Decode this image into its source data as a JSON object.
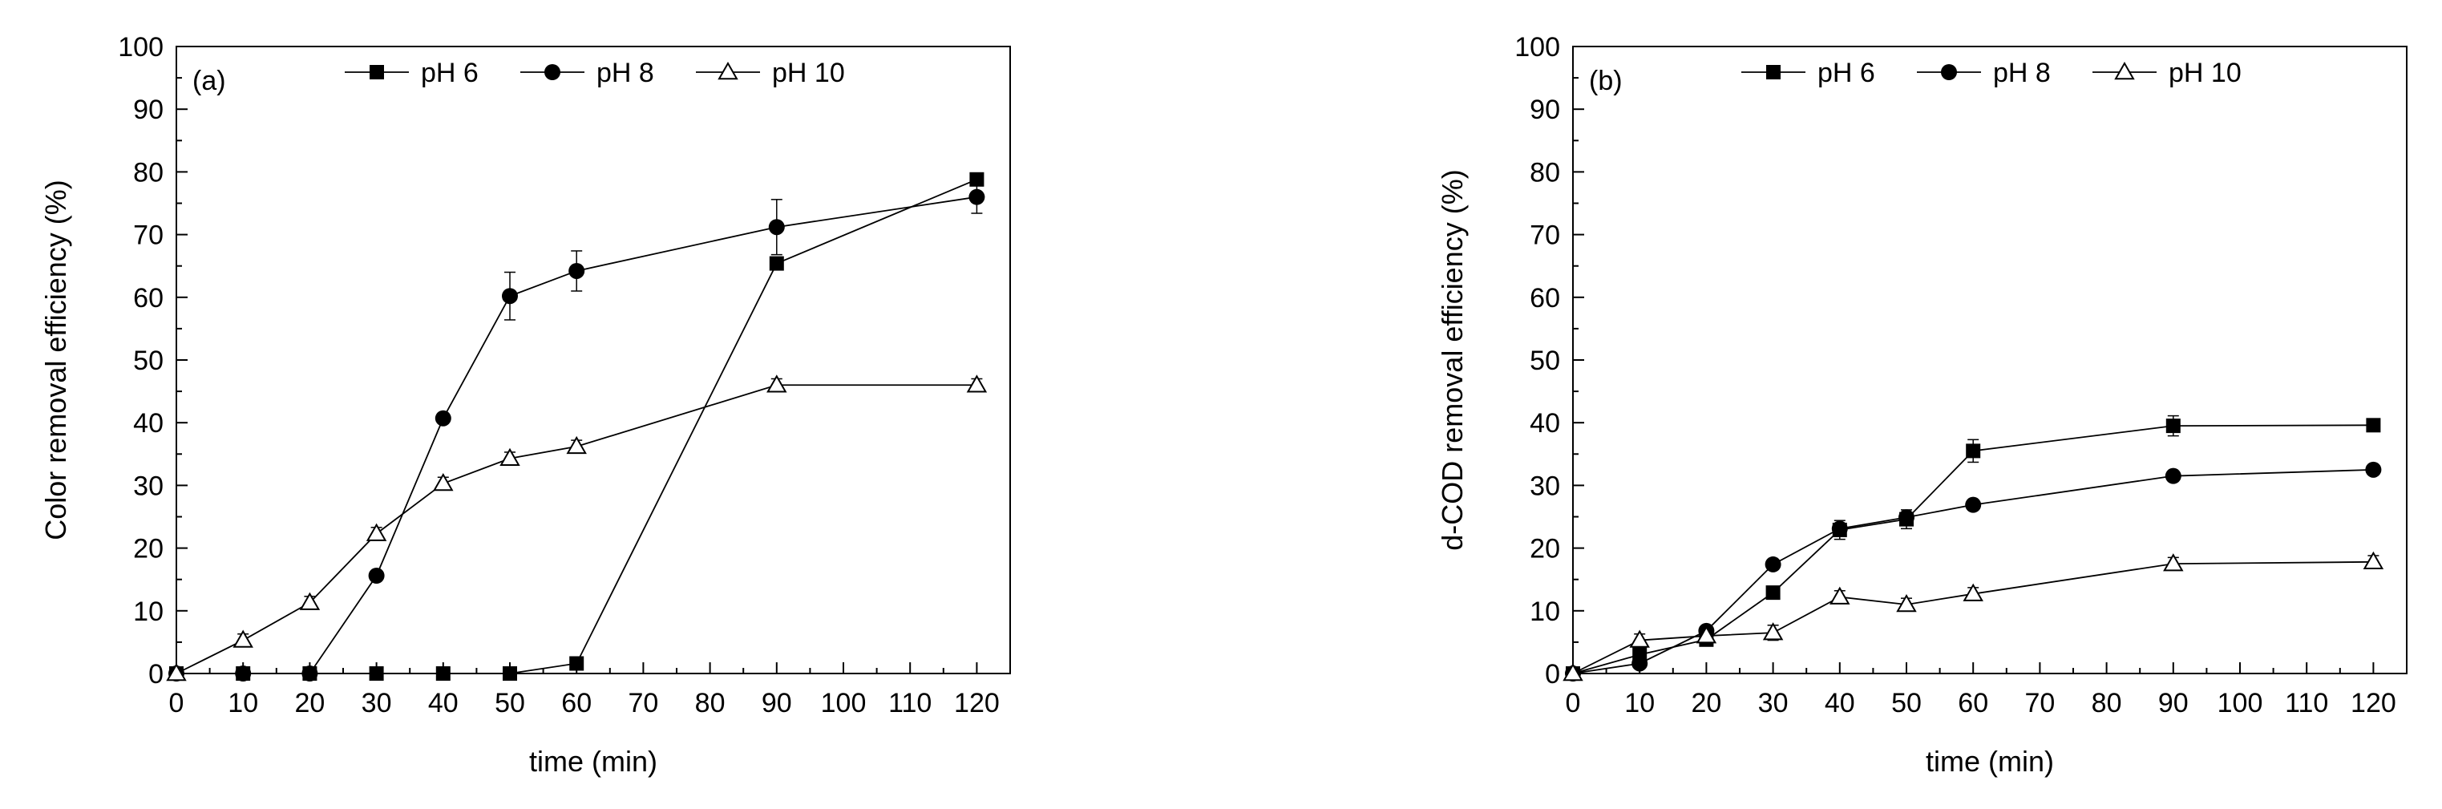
{
  "chart_data": [
    {
      "type": "line",
      "panel_label": "(a)",
      "xlabel": "time (min)",
      "ylabel": "Color removal efficiency (%)",
      "xlim": [
        0,
        125
      ],
      "ylim": [
        0,
        100
      ],
      "xticks": [
        0,
        10,
        20,
        30,
        40,
        50,
        60,
        70,
        80,
        90,
        100,
        110,
        120
      ],
      "yticks": [
        0,
        10,
        20,
        30,
        40,
        50,
        60,
        70,
        80,
        90,
        100
      ],
      "legend_position": "top",
      "series": [
        {
          "name": "pH 6",
          "marker": "square-filled",
          "x": [
            0,
            10,
            20,
            30,
            40,
            50,
            60,
            90,
            120
          ],
          "y": [
            0,
            0,
            0,
            0,
            0,
            0,
            1.6,
            65.4,
            78.8
          ],
          "err": [
            0,
            0,
            0,
            0,
            0,
            0,
            0,
            0,
            0
          ]
        },
        {
          "name": "pH 8",
          "marker": "circle-filled",
          "x": [
            0,
            10,
            20,
            30,
            40,
            50,
            60,
            90,
            120
          ],
          "y": [
            0,
            0,
            0,
            15.6,
            40.7,
            60.2,
            64.2,
            71.2,
            76
          ],
          "err": [
            0,
            0,
            0,
            0,
            0,
            3.8,
            3.2,
            4.4,
            2.6
          ]
        },
        {
          "name": "pH 10",
          "marker": "triangle-open",
          "x": [
            0,
            10,
            20,
            30,
            40,
            50,
            60,
            90,
            120
          ],
          "y": [
            0,
            5.3,
            11.3,
            22.3,
            30.3,
            34.3,
            36.2,
            46,
            46
          ],
          "err": [
            0,
            1,
            1,
            1,
            1,
            1,
            1,
            1,
            1
          ]
        }
      ]
    },
    {
      "type": "line",
      "panel_label": "(b)",
      "xlabel": "time (min)",
      "ylabel": "d-COD removal efficiency (%)",
      "xlim": [
        0,
        125
      ],
      "ylim": [
        0,
        100
      ],
      "xticks": [
        0,
        10,
        20,
        30,
        40,
        50,
        60,
        70,
        80,
        90,
        100,
        110,
        120
      ],
      "yticks": [
        0,
        10,
        20,
        30,
        40,
        50,
        60,
        70,
        80,
        90,
        100
      ],
      "legend_position": "top",
      "series": [
        {
          "name": "pH 6",
          "marker": "square-filled",
          "x": [
            0,
            10,
            20,
            30,
            40,
            50,
            60,
            90,
            120
          ],
          "y": [
            0,
            3,
            5.4,
            12.9,
            22.9,
            24.6,
            35.5,
            39.5,
            39.6
          ],
          "err": [
            0,
            0,
            0.5,
            0,
            1.5,
            1.5,
            1.8,
            1.6,
            0
          ]
        },
        {
          "name": "pH 8",
          "marker": "circle-filled",
          "x": [
            0,
            10,
            20,
            30,
            40,
            50,
            60,
            90,
            120
          ],
          "y": [
            0,
            1.6,
            6.8,
            17.4,
            23.1,
            24.9,
            26.9,
            31.5,
            32.5
          ],
          "err": [
            0,
            0,
            0,
            0,
            0,
            0,
            0,
            0,
            0
          ]
        },
        {
          "name": "pH 10",
          "marker": "triangle-open",
          "x": [
            0,
            10,
            20,
            30,
            40,
            50,
            60,
            90,
            120
          ],
          "y": [
            0,
            5.3,
            6,
            6.5,
            12.2,
            11,
            12.7,
            17.5,
            17.8
          ],
          "err": [
            0,
            1,
            1,
            1.2,
            1,
            1,
            1,
            1,
            1
          ]
        }
      ]
    }
  ]
}
